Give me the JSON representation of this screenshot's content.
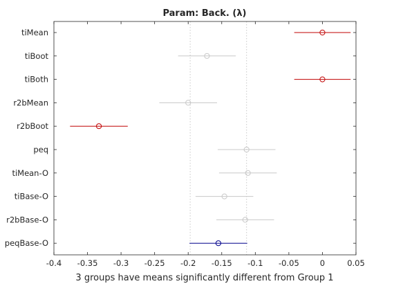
{
  "chart_data": {
    "type": "interval",
    "title": "Param: Back. (λ)",
    "xlabel": "3 groups have means significantly different from Group 1",
    "xlim": [
      -0.4,
      0.05
    ],
    "xticks": [
      "-0.4",
      "-0.35",
      "-0.3",
      "-0.25",
      "-0.2",
      "-0.15",
      "-0.1",
      "-0.05",
      "0",
      "0.05"
    ],
    "xtick_values": [
      -0.4,
      -0.35,
      -0.3,
      -0.25,
      -0.2,
      -0.15,
      -0.1,
      -0.05,
      0,
      0.05
    ],
    "reference_lines": [
      -0.197,
      -0.113
    ],
    "grid": "vertical dotted",
    "groups": [
      {
        "label": "tiMean",
        "mean": 0.0,
        "low": -0.042,
        "high": 0.042,
        "color": "#c00000"
      },
      {
        "label": "tiBoot",
        "mean": -0.172,
        "low": -0.215,
        "high": -0.129,
        "color": "#c8c8c8"
      },
      {
        "label": "tiBoth",
        "mean": 0.0,
        "low": -0.042,
        "high": 0.042,
        "color": "#c00000"
      },
      {
        "label": "r2bMean",
        "mean": -0.2,
        "low": -0.243,
        "high": -0.157,
        "color": "#c8c8c8"
      },
      {
        "label": "r2bBoot",
        "mean": -0.333,
        "low": -0.376,
        "high": -0.29,
        "color": "#c00000"
      },
      {
        "label": "peq",
        "mean": -0.113,
        "low": -0.156,
        "high": -0.07,
        "color": "#c8c8c8"
      },
      {
        "label": "tiMean-O",
        "mean": -0.111,
        "low": -0.154,
        "high": -0.068,
        "color": "#c8c8c8"
      },
      {
        "label": "tiBase-O",
        "mean": -0.146,
        "low": -0.189,
        "high": -0.103,
        "color": "#c8c8c8"
      },
      {
        "label": "r2bBase-O",
        "mean": -0.115,
        "low": -0.158,
        "high": -0.072,
        "color": "#c8c8c8"
      },
      {
        "label": "peqBase-O",
        "mean": -0.155,
        "low": -0.198,
        "high": -0.112,
        "color": "#00008b"
      }
    ]
  }
}
